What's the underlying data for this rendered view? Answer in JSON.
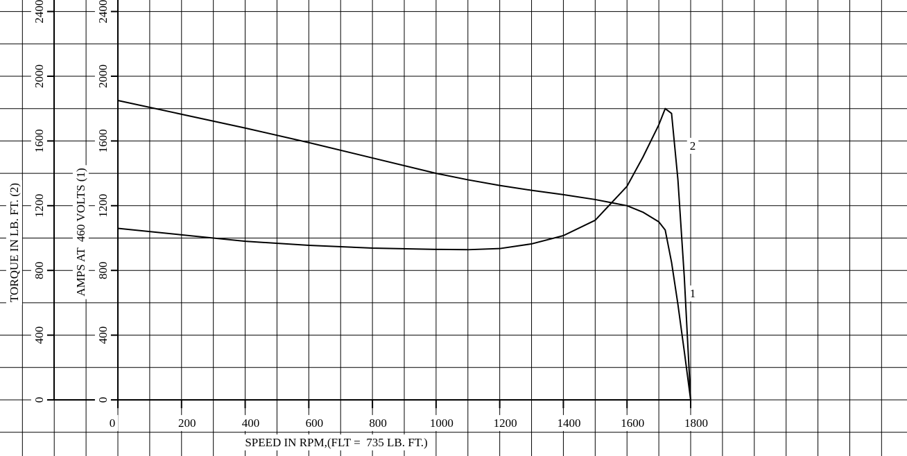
{
  "chart_data": {
    "type": "line",
    "x_label": "SPEED IN RPM,(FLT =  735 LB. FT.)",
    "y_label": "AMPS AT  460 VOLTS (1)",
    "y2_label": "TORQUE IN LB. FT. (2)",
    "x": [
      0,
      200,
      400,
      600,
      800,
      1000,
      1100,
      1200,
      1300,
      1400,
      1500,
      1600,
      1650,
      1700,
      1720,
      1740,
      1760,
      1780,
      1800
    ],
    "series": [
      {
        "name": "1",
        "color": "#000000",
        "values": [
          1850,
          1765,
          1680,
          1590,
          1495,
          1400,
          1360,
          1325,
          1295,
          1268,
          1238,
          1200,
          1160,
          1100,
          1050,
          850,
          590,
          300,
          0
        ]
      },
      {
        "name": "2",
        "color": "#000000",
        "axis": "y2",
        "values": [
          1060,
          1020,
          980,
          955,
          938,
          930,
          928,
          935,
          964,
          1015,
          1110,
          1320,
          1500,
          1700,
          1800,
          1770,
          1360,
          760,
          0
        ]
      }
    ],
    "xlim": [
      0,
      1800
    ],
    "xticks": [
      0,
      200,
      400,
      600,
      800,
      1000,
      1200,
      1400,
      1600,
      1800
    ],
    "ylim": [
      0,
      2400
    ],
    "yticks": [
      0,
      400,
      800,
      1200,
      1600,
      2000,
      2400
    ],
    "y2lim": [
      0,
      2400
    ],
    "y2ticks": [
      0,
      400,
      800,
      1200,
      1600,
      2000,
      2400
    ],
    "grid": true
  }
}
